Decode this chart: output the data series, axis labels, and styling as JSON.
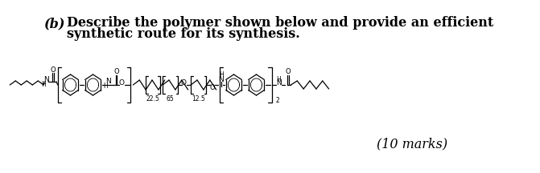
{
  "title_label": "(b)",
  "question_line1": "Describe the polymer shown below and provide an efficient",
  "question_line2": "synthetic route for its synthesis.",
  "marks_label": "(10 marks)",
  "bg_color": "#ffffff",
  "text_color": "#000000",
  "font_size_question": 11.5,
  "font_size_marks": 11.5,
  "subscripts": [
    "22.5",
    "65",
    "12.5",
    "2"
  ]
}
